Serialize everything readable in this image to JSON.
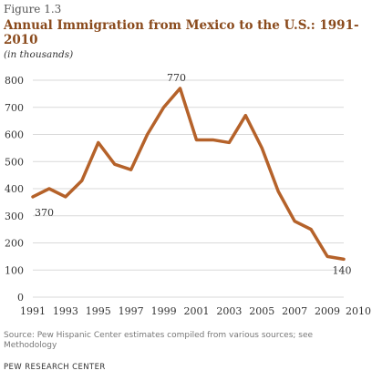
{
  "figure_label": "Figure 1.3",
  "title": "Annual Immigration from Mexico to the U.S.: 1991-2010",
  "subtitle": "(in thousands)",
  "source": "Source: Pew Hispanic Center estimates compiled from various sources; see Methodology",
  "organization": "PEW RESEARCH CENTER",
  "colors": {
    "line": "#b5622a",
    "grid": "#d9d9d9",
    "text": "#333333",
    "title": "#8a4a1c"
  },
  "chart_data": {
    "type": "line",
    "x": [
      1991,
      1992,
      1993,
      1994,
      1995,
      1996,
      1997,
      1998,
      1999,
      2000,
      2001,
      2002,
      2003,
      2004,
      2005,
      2006,
      2007,
      2008,
      2009,
      2010
    ],
    "series": [
      {
        "values": [
          370,
          400,
          370,
          430,
          570,
          490,
          470,
          600,
          700,
          770,
          580,
          580,
          570,
          670,
          550,
          390,
          280,
          250,
          150,
          140
        ]
      }
    ],
    "ylim": [
      0,
      800
    ],
    "yticks": [
      0,
      100,
      200,
      300,
      400,
      500,
      600,
      700,
      800
    ],
    "xticks": [
      1991,
      1993,
      1995,
      1997,
      1999,
      2001,
      2003,
      2005,
      2007,
      2009,
      2010
    ],
    "xlim": [
      1991,
      2010
    ],
    "grid": true,
    "annotations": [
      {
        "x": 1991,
        "y": 370,
        "label": "370"
      },
      {
        "x": 2000,
        "y": 770,
        "label": "770"
      },
      {
        "x": 2010,
        "y": 140,
        "label": "140"
      }
    ]
  }
}
